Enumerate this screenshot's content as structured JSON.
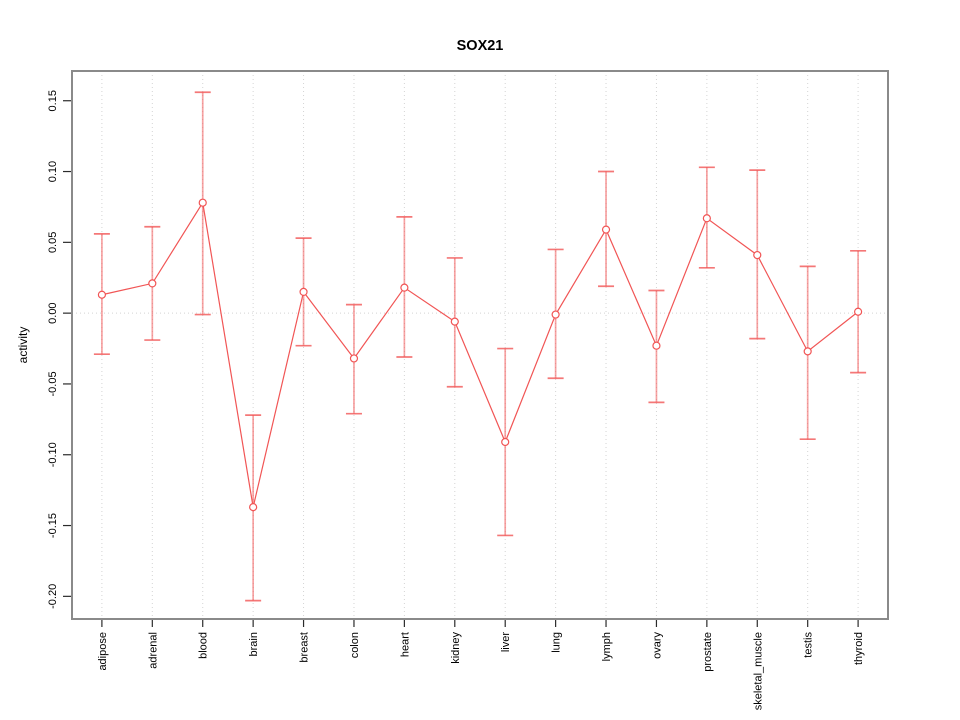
{
  "figure": {
    "title": "SOX21",
    "y_axis_label": "activity"
  },
  "chart_data": {
    "type": "line",
    "subtype": "means-with-error-bars",
    "title": "SOX21",
    "xlabel": "",
    "ylabel": "activity",
    "categories": [
      "adipose",
      "adrenal",
      "blood",
      "brain",
      "breast",
      "colon",
      "heart",
      "kidney",
      "liver",
      "lung",
      "lymph",
      "ovary",
      "prostate",
      "skeletal_muscle",
      "testis",
      "thyroid"
    ],
    "series": [
      {
        "name": "activity",
        "values": [
          0.013,
          0.021,
          0.078,
          -0.137,
          0.015,
          -0.032,
          0.018,
          -0.006,
          -0.091,
          -0.001,
          0.059,
          -0.023,
          0.067,
          0.041,
          -0.027,
          0.001
        ],
        "ci_upper": [
          0.056,
          0.061,
          0.156,
          -0.072,
          0.053,
          0.006,
          0.068,
          0.039,
          -0.025,
          0.045,
          0.1,
          0.016,
          0.103,
          0.101,
          0.033,
          0.044
        ],
        "ci_lower": [
          -0.029,
          -0.019,
          -0.001,
          -0.203,
          -0.023,
          -0.071,
          -0.031,
          -0.052,
          -0.157,
          -0.046,
          0.019,
          -0.063,
          0.032,
          -0.018,
          -0.089,
          -0.042
        ]
      }
    ],
    "ylim": [
      -0.216,
      0.171
    ],
    "yticks": [
      0.15,
      0.1,
      0.05,
      0.0,
      -0.05,
      -0.1,
      -0.15,
      -0.2
    ],
    "ytick_labels": [
      "0.15",
      "0.10",
      "0.05",
      "0.00",
      "-0.05",
      "-0.10",
      "-0.15",
      "-0.20"
    ],
    "legend": "none",
    "grid": {
      "vertical_dotted_at_categories": true,
      "horizontal_dotted_zero_line": true
    },
    "colors": {
      "series": "#f15555",
      "error_bar": "#f15555",
      "grid": "#d4d4d4",
      "frame": "#8a8a8a",
      "tick": "#2b2b2b",
      "text": "#000000",
      "background": "#ffffff"
    }
  }
}
